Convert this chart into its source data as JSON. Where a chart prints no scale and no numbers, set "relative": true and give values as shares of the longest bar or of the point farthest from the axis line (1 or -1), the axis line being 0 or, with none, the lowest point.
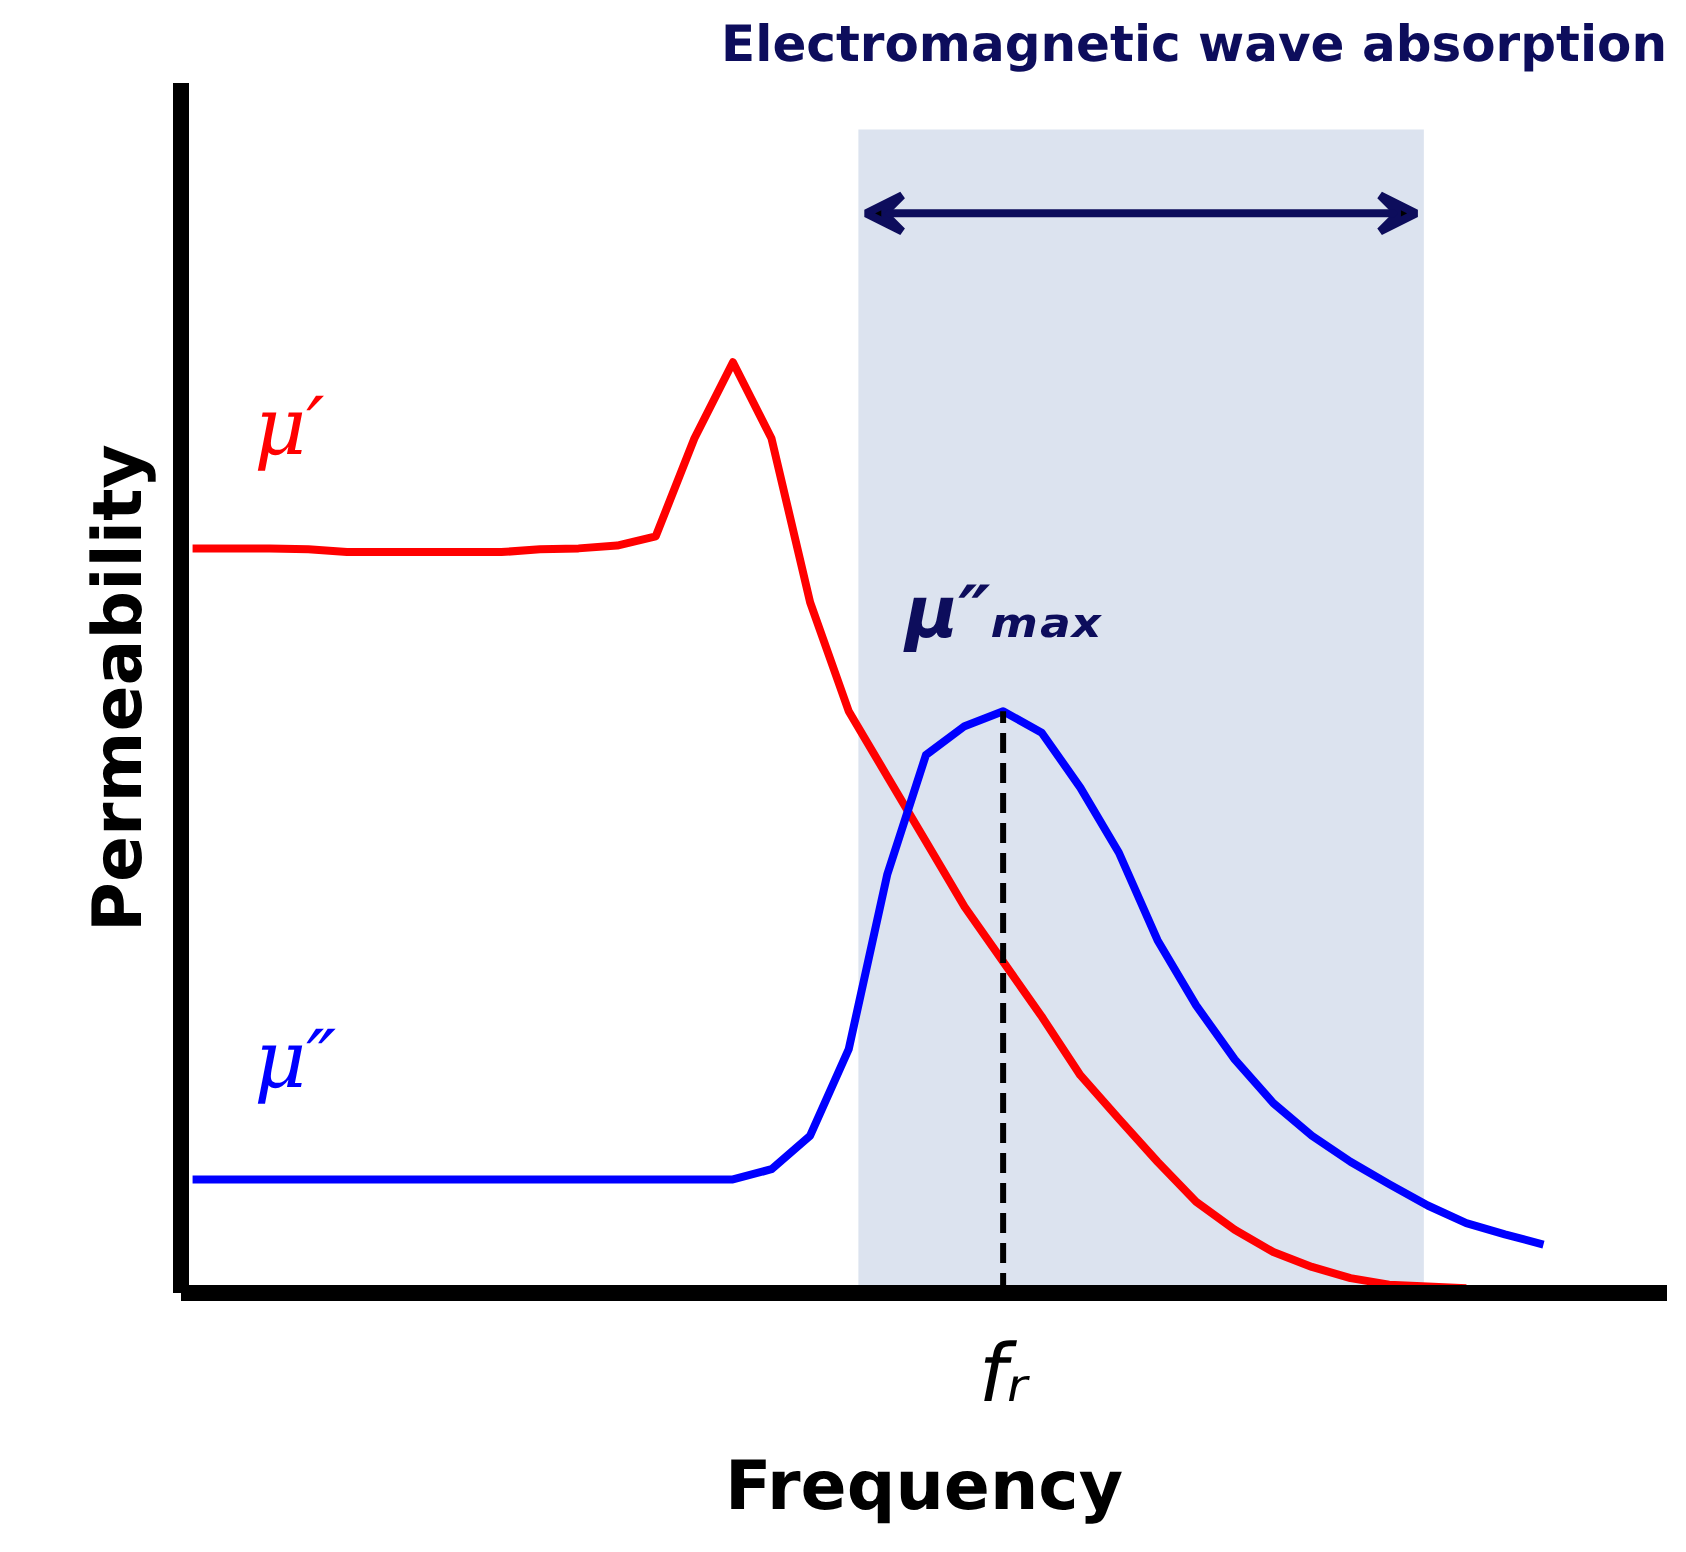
{
  "chart_data": {
    "type": "line",
    "relative": true,
    "title": "Electromagnetic wave absorption",
    "xlabel": "Frequency",
    "ylabel": "Permeability",
    "legend": false,
    "grid": false,
    "categories": [
      null,
      null,
      null,
      null,
      null,
      null,
      null,
      null,
      null,
      null,
      null,
      null,
      null,
      null,
      null,
      null,
      null,
      null,
      null,
      null,
      null,
      null,
      null,
      null,
      null,
      null,
      null,
      null,
      null,
      null,
      null,
      null,
      null,
      null,
      null,
      null
    ],
    "series": [
      {
        "name": "μ′",
        "color": "#ff0000",
        "values": [
          0.8,
          0.8,
          0.8,
          0.799,
          0.796,
          0.796,
          0.796,
          0.796,
          0.796,
          0.799,
          0.8,
          0.803,
          0.813,
          0.918,
          1.0,
          0.918,
          0.742,
          0.625,
          0.555,
          0.485,
          0.415,
          0.356,
          0.297,
          0.234,
          0.187,
          0.141,
          0.098,
          0.068,
          0.044,
          0.028,
          0.016,
          0.009,
          0.007,
          0.005,
          null,
          null
        ]
      },
      {
        "name": "μ″",
        "color": "#0000ff",
        "values": [
          0.122,
          0.122,
          0.122,
          0.122,
          0.122,
          0.122,
          0.122,
          0.122,
          0.122,
          0.122,
          0.122,
          0.122,
          0.122,
          0.122,
          0.122,
          0.133,
          0.169,
          0.262,
          0.45,
          0.578,
          0.609,
          0.625,
          0.602,
          0.543,
          0.473,
          0.379,
          0.309,
          0.251,
          0.204,
          0.169,
          0.141,
          0.117,
          0.094,
          0.075,
          0.063,
          0.052
        ]
      }
    ],
    "annotations": [
      {
        "text": "μ″ₘₐₓ",
        "y": 0.625
      },
      "fᵣ"
    ]
  }
}
